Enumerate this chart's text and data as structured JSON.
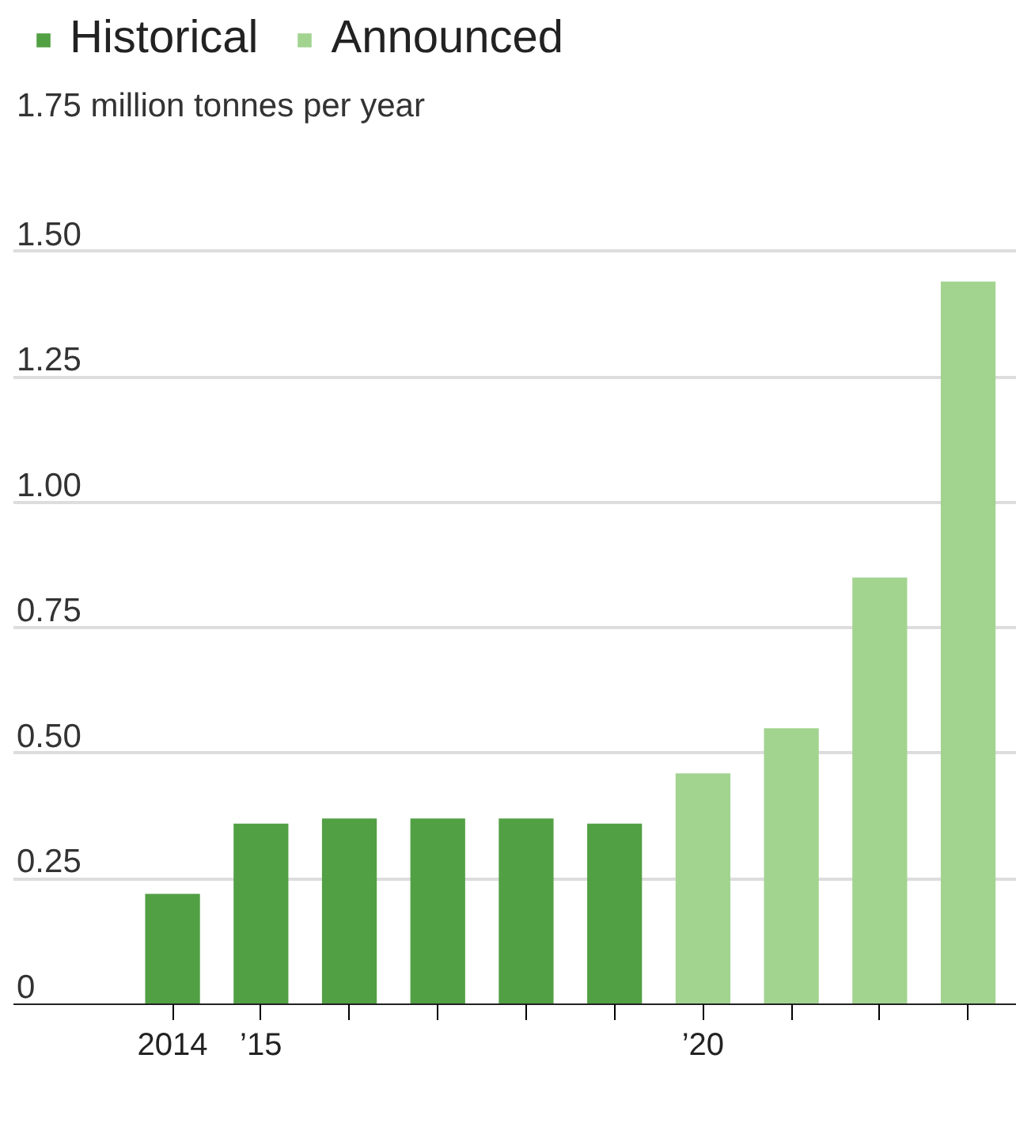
{
  "chart_data": {
    "type": "bar",
    "x": [
      2014,
      2015,
      2016,
      2017,
      2018,
      2019,
      2020,
      2021,
      2022,
      2023
    ],
    "series": [
      {
        "name": "Historical",
        "color": "#52a044",
        "values": [
          0.22,
          0.36,
          0.37,
          0.37,
          0.37,
          0.36,
          null,
          null,
          null,
          null
        ]
      },
      {
        "name": "Announced",
        "color": "#a2d490",
        "values": [
          null,
          null,
          null,
          null,
          null,
          null,
          0.46,
          0.55,
          0.85,
          1.44
        ]
      }
    ],
    "xlim": [
      2012.2,
      2023.55
    ],
    "xticks": [
      2014,
      {
        "value": 2015,
        "label": "’15"
      },
      {
        "value": 2016,
        "label": null
      },
      {
        "value": 2017,
        "label": null
      },
      {
        "value": 2018,
        "label": null
      },
      {
        "value": 2019,
        "label": null
      },
      {
        "value": 2020,
        "label": "’20"
      },
      {
        "value": 2021,
        "label": null
      },
      {
        "value": 2022,
        "label": null
      },
      {
        "value": 2023,
        "label": null
      }
    ],
    "ylim": [
      0,
      1.75
    ],
    "yticks": [
      0,
      0.25,
      {
        "value": 0.5,
        "label": "0.50"
      },
      0.75,
      {
        "value": 1.0,
        "label": "1.00"
      },
      1.25,
      {
        "value": 1.5,
        "label": "1.50"
      },
      {
        "value": 1.75,
        "label": "1.75 million tonnes per year"
      }
    ],
    "grid": "y",
    "legend": "top left"
  }
}
